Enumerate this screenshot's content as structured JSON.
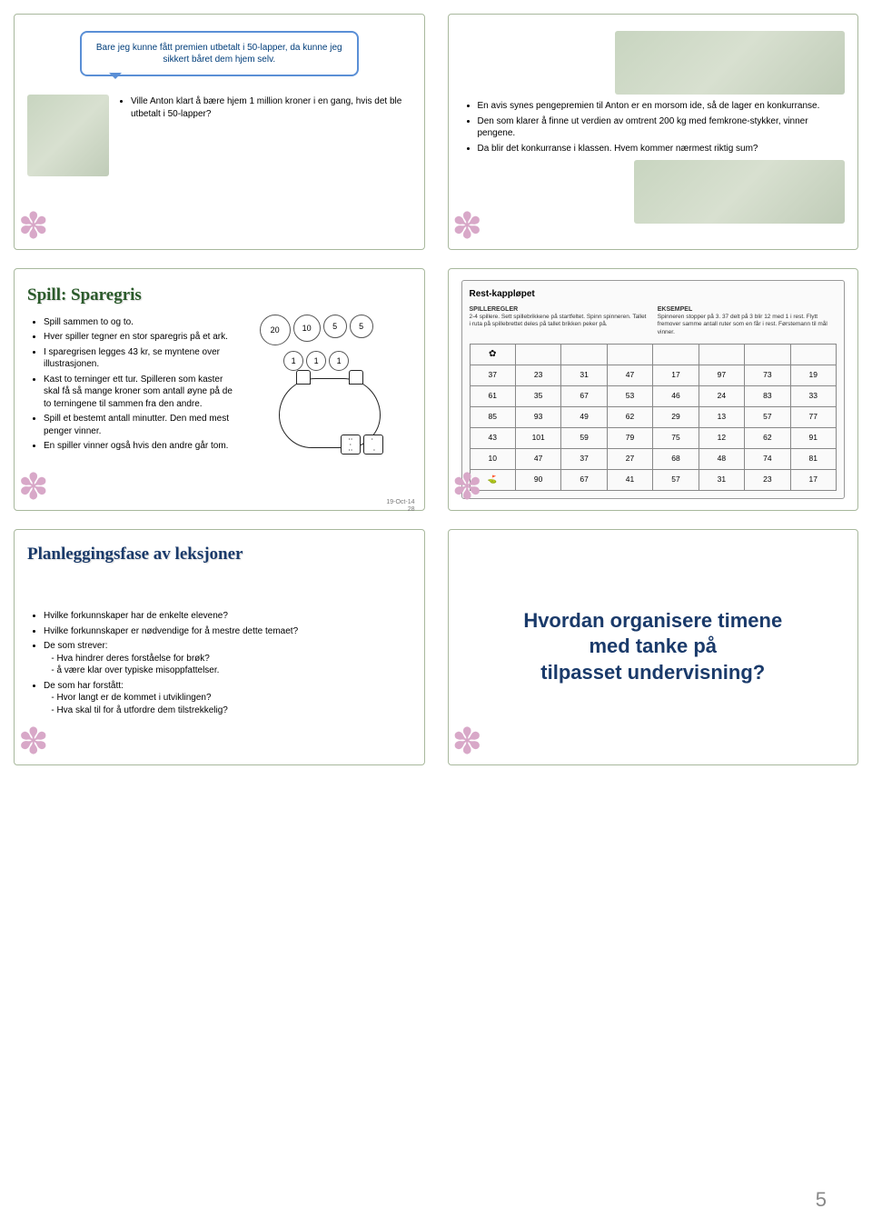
{
  "slide1": {
    "bubble": "Bare jeg kunne fått premien utbetalt i 50-lapper, da kunne jeg sikkert båret dem hjem selv.",
    "bullet": "Ville Anton klart å bære hjem 1 million kroner i en gang, hvis det ble utbetalt i 50-lapper?"
  },
  "slide2": {
    "b1": "En avis synes pengepremien til Anton er en morsom ide, så de lager en konkurranse.",
    "b2": "Den som klarer å finne ut verdien av omtrent 200 kg med femkrone-stykker, vinner pengene.",
    "b3": "Da blir det konkurranse i klassen. Hvem kommer nærmest riktig sum?"
  },
  "slide3": {
    "title": "Spill: Sparegris",
    "coins": [
      {
        "v": "20",
        "d": 32
      },
      {
        "v": "10",
        "d": 28
      },
      {
        "v": "5",
        "d": 24
      },
      {
        "v": "5",
        "d": 24
      },
      {
        "v": "1",
        "d": 20
      },
      {
        "v": "1",
        "d": 20
      },
      {
        "v": "1",
        "d": 20
      }
    ],
    "b1": "Spill sammen to og to.",
    "b2": "Hver spiller tegner en stor sparegris på et ark.",
    "b3": "I sparegrisen legges 43 kr, se myntene over illustrasjonen.",
    "b4": "Kast to terninger ett tur. Spilleren som kaster skal få så mange kroner som antall øyne på de to terningene til sammen fra den andre.",
    "b5": "Spill et bestemt antall minutter. Den med mest penger vinner.",
    "b6": "En spiller vinner også hvis den andre går tom.",
    "date": "19-Oct-14",
    "pn": "28"
  },
  "slide4": {
    "title": "Rest-kappløpet",
    "rule_h": "SPILLEREGLER",
    "rule_t": "2-4 spillere. Sett spillebrikkene på startfeltet. Spinn spinneren. Tallet i ruta på spillebrettet deles på tallet brikken peker på.",
    "ex_h": "EKSEMPEL",
    "ex_t": "Spinneren stopper på 3. 37 delt på 3 blir 12 med 1 i rest. Flytt fremover samme antall ruter som en får i rest. Førstemann til mål vinner.",
    "icons": [
      "✿",
      "",
      "",
      "",
      "",
      "",
      "",
      ""
    ],
    "rows": [
      [
        "37",
        "23",
        "31",
        "47",
        "17",
        "97",
        "73",
        "19"
      ],
      [
        "61",
        "35",
        "67",
        "53",
        "46",
        "24",
        "83",
        "33"
      ],
      [
        "85",
        "93",
        "49",
        "62",
        "29",
        "13",
        "57",
        "77"
      ],
      [
        "43",
        "101",
        "59",
        "79",
        "75",
        "12",
        "62",
        "91"
      ],
      [
        "10",
        "47",
        "37",
        "27",
        "68",
        "48",
        "74",
        "81"
      ],
      [
        "⛳",
        "90",
        "67",
        "41",
        "57",
        "31",
        "23",
        "17"
      ]
    ]
  },
  "slide5": {
    "title": "Planleggingsfase av leksjoner",
    "b1": "Hvilke forkunnskaper har de enkelte elevene?",
    "b2": "Hvilke forkunnskaper er nødvendige for å mestre dette temaet?",
    "b3": "De som strever:",
    "b3a": "- Hva hindrer deres forståelse for brøk?",
    "b3b": "- å være klar over typiske misoppfattelser.",
    "b4": "De som har forstått:",
    "b4a": "- Hvor langt er de kommet i utviklingen?",
    "b4b": "- Hva skal til for å utfordre dem tilstrekkelig?"
  },
  "slide6": {
    "l1": "Hvordan organisere timene",
    "l2": "med tanke på",
    "l3": "tilpasset undervisning?"
  },
  "page": "5"
}
